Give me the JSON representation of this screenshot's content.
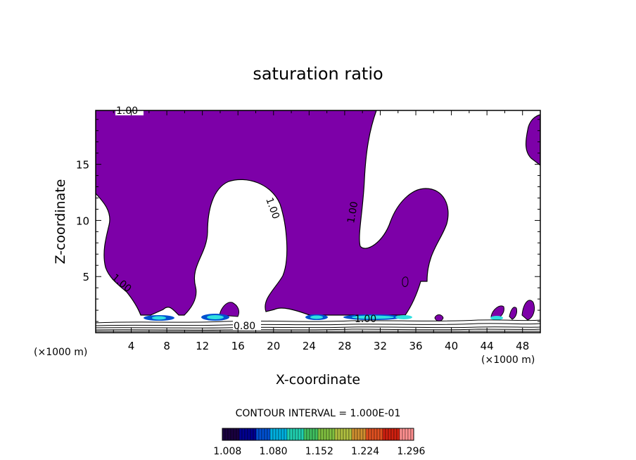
{
  "chart_data": {
    "type": "contour",
    "title": "saturation ratio",
    "xlabel": "X-coordinate",
    "ylabel": "Z-coordinate",
    "x_unit": "(×1000 m)",
    "y_unit": "(×1000 m)",
    "xlim": [
      0,
      50
    ],
    "ylim": [
      0,
      19.8
    ],
    "x_ticks": [
      "4",
      "8",
      "12",
      "16",
      "20",
      "24",
      "28",
      "32",
      "36",
      "40",
      "44",
      "48"
    ],
    "y_ticks": [
      "5",
      "10",
      "15"
    ],
    "contour_interval_text": "CONTOUR INTERVAL = 1.000E-01",
    "contour_labels": [
      "1.00",
      "1.00",
      "1.00",
      "1.00",
      "1.00",
      "0.80"
    ],
    "fill_color": "#7d00a8",
    "colorbar": {
      "tick_labels": [
        "1.008",
        "1.080",
        "1.152",
        "1.224",
        "1.296"
      ],
      "min": 1.0,
      "max": 1.3,
      "colors": [
        "#1a0040",
        "#000090",
        "#0050d0",
        "#00b0e0",
        "#20d0b0",
        "#40c060",
        "#80c040",
        "#b0c040",
        "#d09030",
        "#e05020",
        "#d02010",
        "#ff9090"
      ]
    }
  }
}
